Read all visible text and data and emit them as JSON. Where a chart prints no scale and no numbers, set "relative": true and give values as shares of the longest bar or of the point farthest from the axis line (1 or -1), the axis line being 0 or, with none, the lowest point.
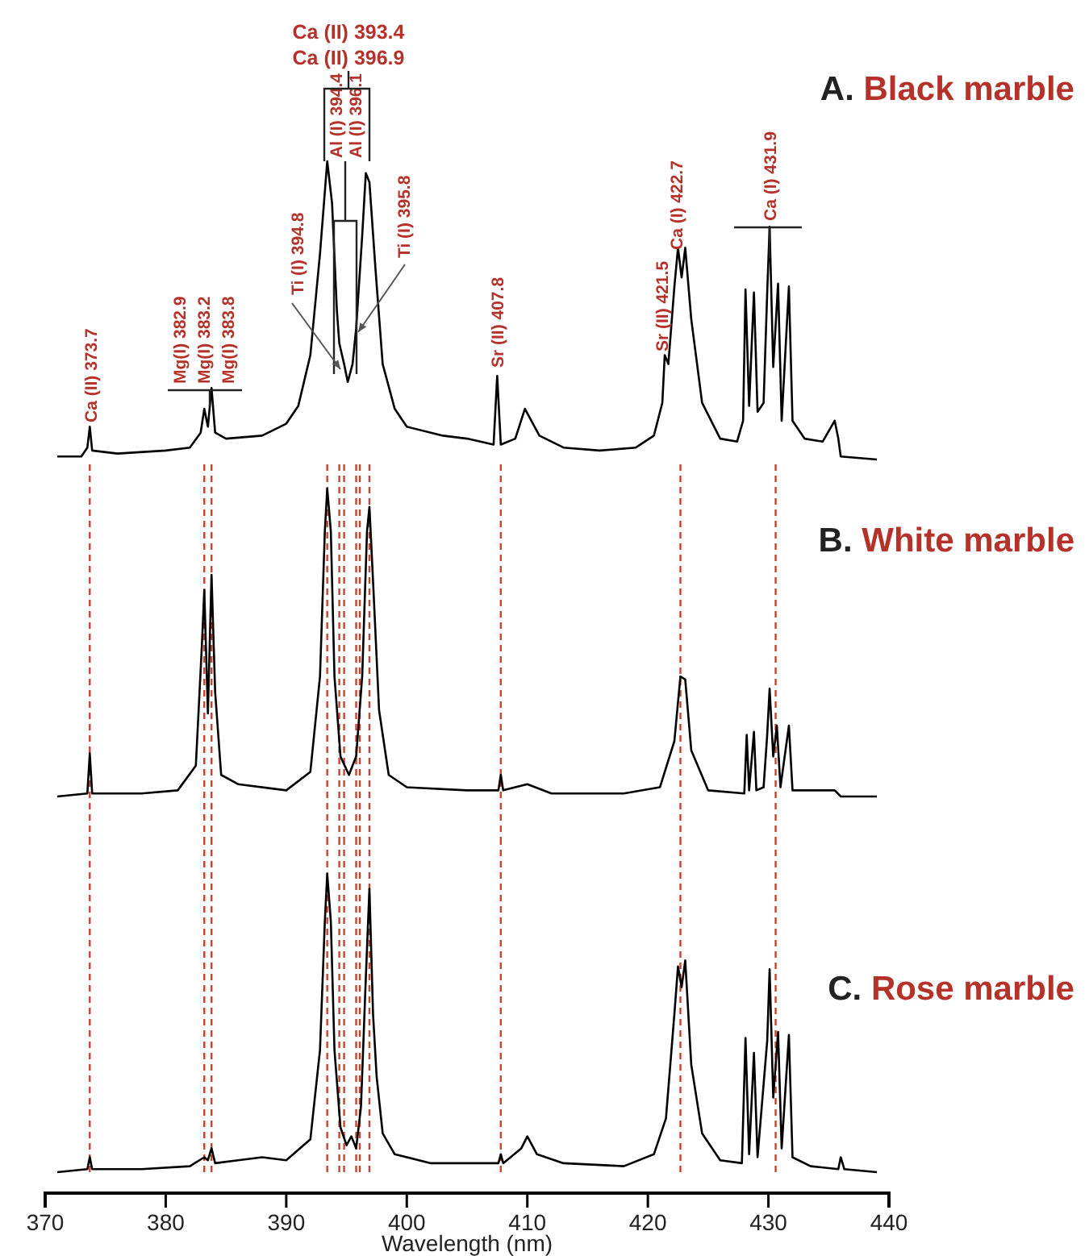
{
  "chart_data": [
    {
      "type": "line",
      "title": "A. Black marble",
      "relative": true,
      "color": "#000000",
      "xlim": [
        370,
        440
      ],
      "tick_labels": false,
      "x": [
        371,
        373,
        373.5,
        373.7,
        373.9,
        376,
        380,
        382,
        382.9,
        383.2,
        383.5,
        383.8,
        384.1,
        385,
        388,
        390,
        391,
        392,
        392.8,
        393.4,
        393.8,
        394.2,
        394.4,
        394.8,
        395.1,
        395.5,
        395.8,
        396.3,
        396.6,
        396.9,
        397.4,
        398,
        399,
        400,
        403,
        405,
        407.2,
        407.5,
        407.8,
        409,
        409.8,
        411,
        413,
        416,
        419,
        420.5,
        421.2,
        421.4,
        421.7,
        422.2,
        422.5,
        422.8,
        423.1,
        423.6,
        424.5,
        426,
        427.4,
        427.9,
        428.1,
        428.4,
        428.8,
        429.1,
        429.6,
        429.9,
        430.1,
        430.4,
        430.8,
        431.1,
        431.7,
        432,
        433,
        434.5,
        435.5,
        435.8,
        436,
        439
      ],
      "values": [
        0.01,
        0.01,
        0.04,
        0.11,
        0.03,
        0.02,
        0.03,
        0.04,
        0.09,
        0.17,
        0.11,
        0.24,
        0.09,
        0.07,
        0.08,
        0.12,
        0.18,
        0.35,
        0.69,
        1,
        0.86,
        0.5,
        0.39,
        0.32,
        0.26,
        0.32,
        0.44,
        0.75,
        0.96,
        0.93,
        0.64,
        0.32,
        0.17,
        0.11,
        0.08,
        0.07,
        0.05,
        0.28,
        0.05,
        0.07,
        0.17,
        0.08,
        0.04,
        0.03,
        0.04,
        0.08,
        0.19,
        0.35,
        0.32,
        0.58,
        0.71,
        0.61,
        0.71,
        0.47,
        0.19,
        0.07,
        0.06,
        0.13,
        0.57,
        0.18,
        0.56,
        0.16,
        0.19,
        0.56,
        0.78,
        0.31,
        0.59,
        0.13,
        0.58,
        0.13,
        0.07,
        0.06,
        0.13,
        0.07,
        0.01,
        0
      ],
      "annotations": [
        "Ca (II) 373.7",
        "Mg(I) 382.9",
        "Mg(I) 383.2",
        "Mg(I) 383.8",
        "Ti (I) 394.8",
        "Al (I) 394.4",
        "Al (I) 396.1",
        "Ti (I) 395.8",
        "Ca (II) 393.4",
        "Ca (II) 396.9",
        "Sr (II) 407.8",
        "Sr (II) 421.5",
        "Ca (I) 422.7",
        "Ca (I) 431.9"
      ]
    },
    {
      "type": "line",
      "title": "B. White marble",
      "relative": true,
      "color": "#000000",
      "xlim": [
        370,
        440
      ],
      "tick_labels": false,
      "x": [
        371,
        373.5,
        373.7,
        373.9,
        378,
        381,
        382.5,
        383,
        383.2,
        383.5,
        383.8,
        384.1,
        384.6,
        386,
        390,
        392,
        392.8,
        393.2,
        393.4,
        393.7,
        394,
        394.5,
        395.2,
        395.8,
        396.3,
        396.7,
        396.9,
        397.2,
        397.7,
        398.5,
        400,
        405,
        407.6,
        407.8,
        408,
        410,
        412,
        418,
        421,
        422.2,
        422.7,
        423.1,
        423.6,
        425,
        428,
        428.2,
        428.4,
        428.8,
        429,
        429.6,
        429.9,
        430.1,
        430.4,
        430.7,
        431,
        431.7,
        432,
        435.5,
        436,
        439
      ],
      "values": [
        0,
        0.01,
        0.14,
        0.01,
        0.01,
        0.02,
        0.1,
        0.49,
        0.67,
        0.27,
        0.72,
        0.34,
        0.07,
        0.04,
        0.02,
        0.08,
        0.39,
        0.86,
        1,
        0.86,
        0.39,
        0.13,
        0.07,
        0.13,
        0.39,
        0.86,
        0.94,
        0.7,
        0.28,
        0.07,
        0.03,
        0.02,
        0.02,
        0.07,
        0.02,
        0.04,
        0.01,
        0.01,
        0.03,
        0.18,
        0.39,
        0.38,
        0.15,
        0.02,
        0.01,
        0.2,
        0.02,
        0.21,
        0.02,
        0.03,
        0.2,
        0.35,
        0.13,
        0.23,
        0.03,
        0.23,
        0.02,
        0.02,
        0,
        0
      ],
      "ref_lines": [
        {
          "axis": "x",
          "value": 373.7,
          "color": "#c8442e",
          "line_style": "dashed"
        },
        {
          "axis": "x",
          "value": 383.2,
          "color": "#c8442e",
          "line_style": "dashed"
        },
        {
          "axis": "x",
          "value": 383.8,
          "color": "#c8442e",
          "line_style": "dashed"
        },
        {
          "axis": "x",
          "value": 393.4,
          "color": "#c8442e",
          "line_style": "dashed"
        },
        {
          "axis": "x",
          "value": 394.4,
          "color": "#c8442e",
          "line_style": "dashed"
        },
        {
          "axis": "x",
          "value": 394.8,
          "color": "#c8442e",
          "line_style": "dashed"
        },
        {
          "axis": "x",
          "value": 395.8,
          "color": "#c8442e",
          "line_style": "dashed"
        },
        {
          "axis": "x",
          "value": 396.1,
          "color": "#c8442e",
          "line_style": "dashed"
        },
        {
          "axis": "x",
          "value": 396.9,
          "color": "#c8442e",
          "line_style": "dashed"
        },
        {
          "axis": "x",
          "value": 407.8,
          "color": "#c8442e",
          "line_style": "dashed"
        },
        {
          "axis": "x",
          "value": 422.7,
          "color": "#c8442e",
          "line_style": "dashed"
        },
        {
          "axis": "x",
          "value": 430.6,
          "color": "#c8442e",
          "line_style": "dashed"
        }
      ]
    },
    {
      "type": "line",
      "title": "C. Rose marble",
      "relative": true,
      "color": "#000000",
      "xlim": [
        370,
        440
      ],
      "tick_labels": "x",
      "xlabel": "Wavelength (nm)",
      "xticks": [
        370,
        380,
        390,
        400,
        410,
        420,
        430,
        440
      ],
      "x": [
        371,
        373.5,
        373.7,
        373.9,
        378,
        382,
        383.2,
        383.5,
        383.8,
        384.1,
        386,
        388,
        390,
        392,
        392.8,
        393.2,
        393.4,
        393.7,
        394,
        394.5,
        395,
        395.4,
        395.8,
        396.2,
        396.6,
        396.9,
        397.2,
        397.5,
        398,
        399,
        402,
        405,
        407.6,
        407.8,
        408,
        409.5,
        410,
        410.8,
        413,
        418,
        420.5,
        421.5,
        422.2,
        422.5,
        422.8,
        423.1,
        423.6,
        424.5,
        426,
        427.8,
        428.1,
        428.4,
        428.8,
        429.1,
        429.9,
        430.1,
        430.4,
        430.8,
        431.1,
        431.7,
        432,
        433.5,
        435.8,
        436,
        436.3,
        439
      ],
      "values": [
        0,
        0.01,
        0.05,
        0.01,
        0.01,
        0.02,
        0.05,
        0.04,
        0.08,
        0.03,
        0.04,
        0.05,
        0.04,
        0.11,
        0.41,
        0.84,
        1,
        0.84,
        0.41,
        0.15,
        0.09,
        0.12,
        0.08,
        0.22,
        0.65,
        0.95,
        0.53,
        0.32,
        0.13,
        0.06,
        0.03,
        0.03,
        0.03,
        0.06,
        0.03,
        0.08,
        0.12,
        0.06,
        0.03,
        0.02,
        0.06,
        0.18,
        0.53,
        0.69,
        0.62,
        0.71,
        0.36,
        0.13,
        0.04,
        0.03,
        0.45,
        0.06,
        0.4,
        0.05,
        0.44,
        0.68,
        0.25,
        0.47,
        0.08,
        0.46,
        0.05,
        0.02,
        0.01,
        0.05,
        0.01,
        0
      ],
      "ref_lines": [
        {
          "axis": "x",
          "value": 373.7,
          "color": "#c8442e",
          "line_style": "dashed"
        },
        {
          "axis": "x",
          "value": 383.2,
          "color": "#c8442e",
          "line_style": "dashed"
        },
        {
          "axis": "x",
          "value": 383.8,
          "color": "#c8442e",
          "line_style": "dashed"
        },
        {
          "axis": "x",
          "value": 393.4,
          "color": "#c8442e",
          "line_style": "dashed"
        },
        {
          "axis": "x",
          "value": 394.4,
          "color": "#c8442e",
          "line_style": "dashed"
        },
        {
          "axis": "x",
          "value": 394.8,
          "color": "#c8442e",
          "line_style": "dashed"
        },
        {
          "axis": "x",
          "value": 395.8,
          "color": "#c8442e",
          "line_style": "dashed"
        },
        {
          "axis": "x",
          "value": 396.1,
          "color": "#c8442e",
          "line_style": "dashed"
        },
        {
          "axis": "x",
          "value": 396.9,
          "color": "#c8442e",
          "line_style": "dashed"
        },
        {
          "axis": "x",
          "value": 407.8,
          "color": "#c8442e",
          "line_style": "dashed"
        },
        {
          "axis": "x",
          "value": 422.7,
          "color": "#c8442e",
          "line_style": "dashed"
        },
        {
          "axis": "x",
          "value": 430.6,
          "color": "#c8442e",
          "line_style": "dashed"
        }
      ]
    }
  ]
}
